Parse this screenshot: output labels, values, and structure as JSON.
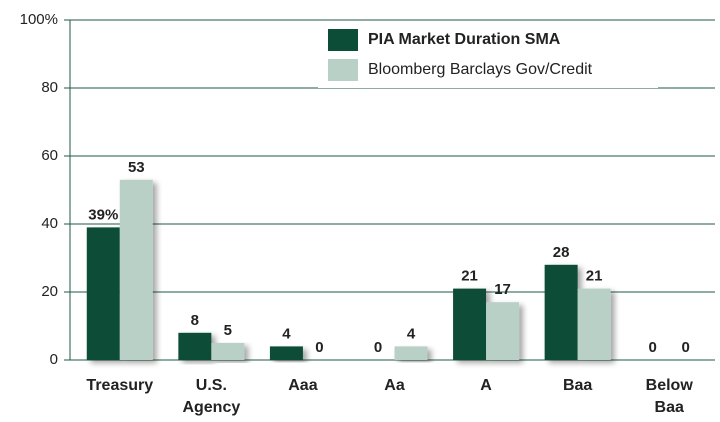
{
  "chart_data": {
    "type": "bar",
    "categories": [
      "Treasury",
      "U.S. Agency",
      "Aaa",
      "Aa",
      "A",
      "Baa",
      "Below Baa"
    ],
    "series": [
      {
        "name": "PIA Market Duration SMA",
        "color": "#0c4d38",
        "values": [
          39,
          8,
          4,
          0,
          21,
          28,
          0
        ],
        "value_labels": [
          "39%",
          "8",
          "4",
          "0",
          "21",
          "28",
          "0"
        ]
      },
      {
        "name": "Bloomberg Barclays Gov/Credit",
        "color": "#b8d0c6",
        "values": [
          53,
          5,
          0,
          4,
          17,
          21,
          0
        ]
      }
    ],
    "ylim": [
      0,
      100
    ],
    "yticks": [
      0,
      20,
      40,
      60,
      80,
      {
        "value": 100,
        "label": "100%"
      }
    ],
    "grid": true
  }
}
